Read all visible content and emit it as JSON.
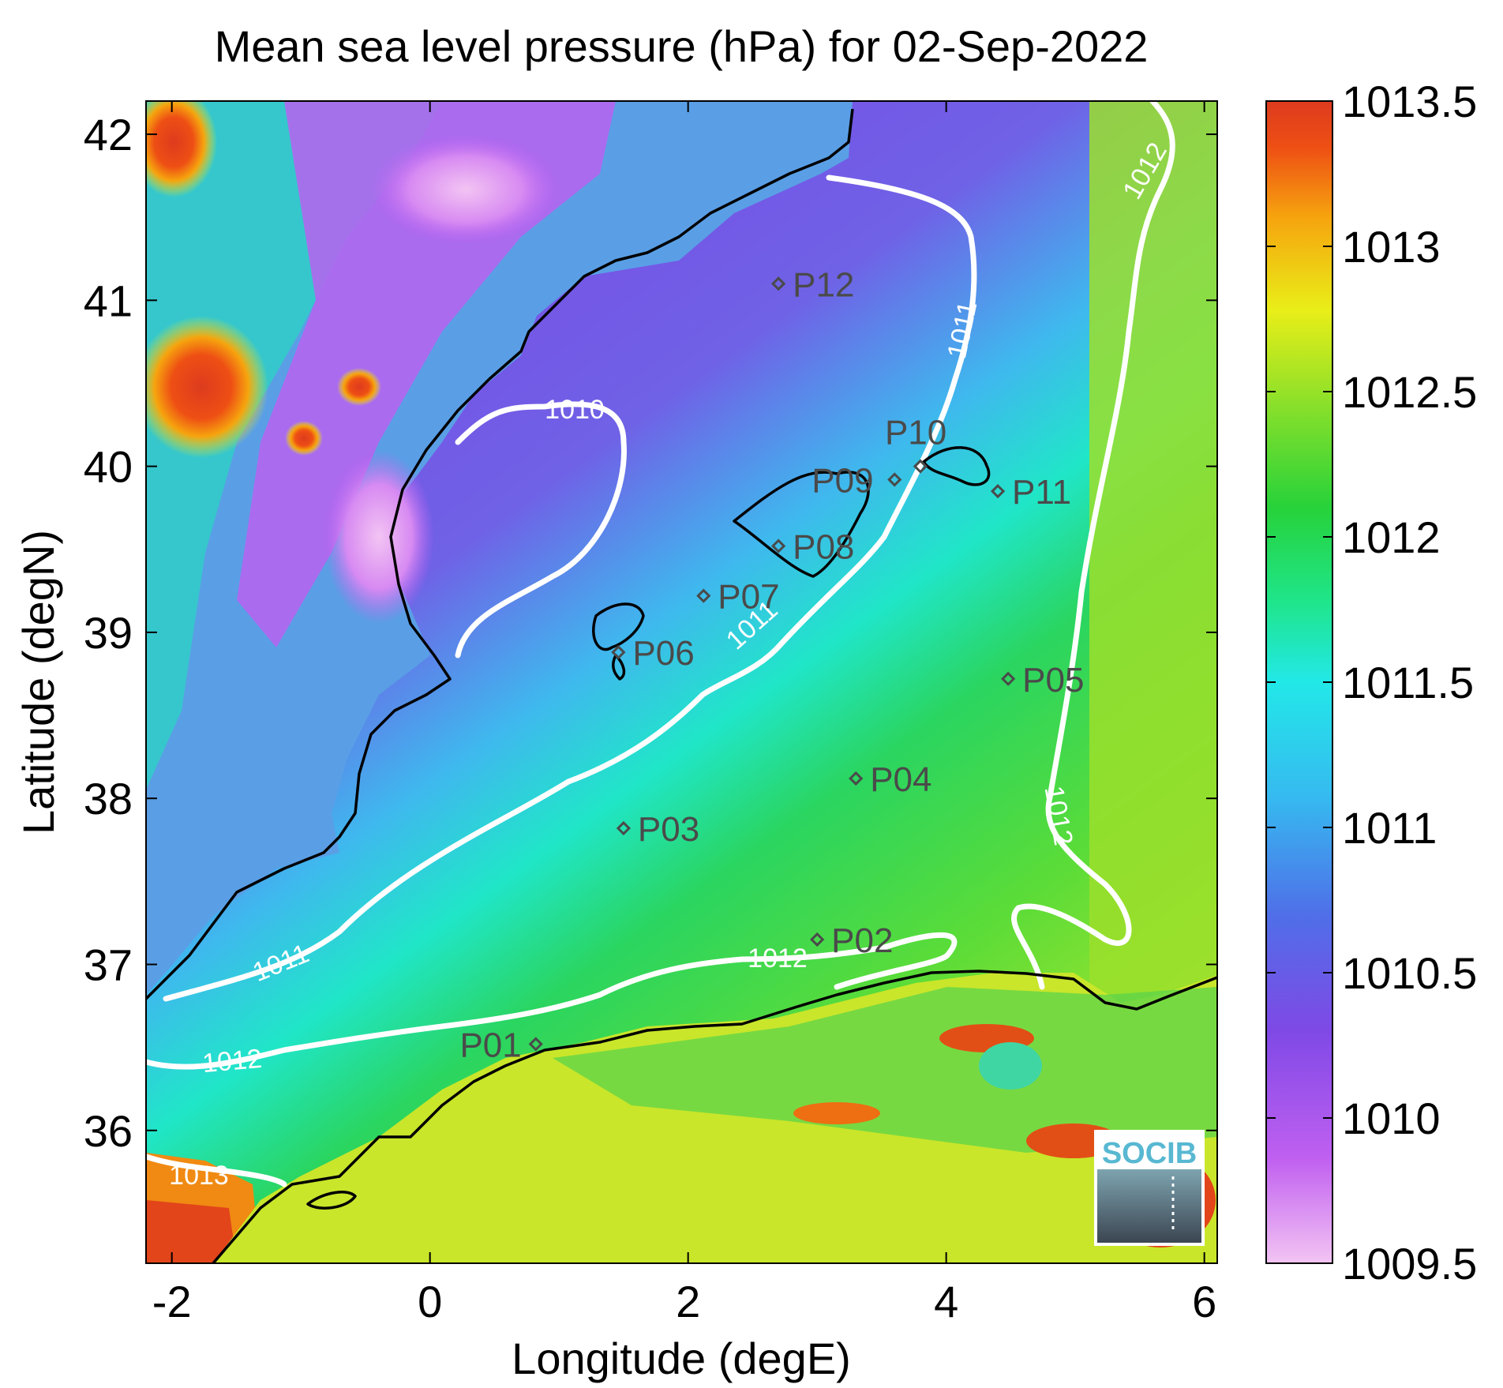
{
  "title": "Mean sea level pressure (hPa) for 02-Sep-2022",
  "xlabel": "Longitude (degE)",
  "ylabel": "Latitude (degN)",
  "xlim": [
    -2.2,
    6.1
  ],
  "ylim": [
    35.2,
    42.2
  ],
  "xticks": [
    {
      "value": -2,
      "label": "-2"
    },
    {
      "value": 0,
      "label": "0"
    },
    {
      "value": 2,
      "label": "2"
    },
    {
      "value": 4,
      "label": "4"
    },
    {
      "value": 6,
      "label": "6"
    }
  ],
  "yticks": [
    {
      "value": 36,
      "label": "36"
    },
    {
      "value": 37,
      "label": "37"
    },
    {
      "value": 38,
      "label": "38"
    },
    {
      "value": 39,
      "label": "39"
    },
    {
      "value": 40,
      "label": "40"
    },
    {
      "value": 41,
      "label": "41"
    },
    {
      "value": 42,
      "label": "42"
    }
  ],
  "colorbar": {
    "range": [
      1009.5,
      1013.5
    ],
    "ticks": [
      {
        "value": 1013.5,
        "label": "1013.5"
      },
      {
        "value": 1013,
        "label": "1013"
      },
      {
        "value": 1012.5,
        "label": "1012.5"
      },
      {
        "value": 1012,
        "label": "1012"
      },
      {
        "value": 1011.5,
        "label": "1011.5"
      },
      {
        "value": 1011,
        "label": "1011"
      },
      {
        "value": 1010.5,
        "label": "1010.5"
      },
      {
        "value": 1010,
        "label": "1010"
      },
      {
        "value": 1009.5,
        "label": "1009.5"
      }
    ],
    "colors": [
      "#f3c4f3",
      "#c060f0",
      "#7f49e6",
      "#4f6fe8",
      "#22e8e8",
      "#1fe58a",
      "#27d23a",
      "#8be02a",
      "#e9ee18",
      "#f6a40e",
      "#ee4f14",
      "#dd3b1e"
    ]
  },
  "contour_labels": [
    "1010",
    "1011",
    "1011",
    "1011",
    "1012",
    "1012",
    "1012",
    "1012",
    "1013"
  ],
  "stations": [
    {
      "id": "P01",
      "lon": 0.82,
      "lat": 36.52
    },
    {
      "id": "P02",
      "lon": 3.0,
      "lat": 37.15
    },
    {
      "id": "P03",
      "lon": 1.5,
      "lat": 37.82
    },
    {
      "id": "P04",
      "lon": 3.3,
      "lat": 38.12
    },
    {
      "id": "P05",
      "lon": 4.48,
      "lat": 38.72
    },
    {
      "id": "P06",
      "lon": 1.46,
      "lat": 38.88
    },
    {
      "id": "P07",
      "lon": 2.12,
      "lat": 39.22
    },
    {
      "id": "P08",
      "lon": 2.7,
      "lat": 39.52
    },
    {
      "id": "P09",
      "lon": 3.6,
      "lat": 39.92
    },
    {
      "id": "P10",
      "lon": 3.8,
      "lat": 40.0
    },
    {
      "id": "P11",
      "lon": 4.4,
      "lat": 39.85
    },
    {
      "id": "P12",
      "lon": 2.7,
      "lat": 41.1
    }
  ],
  "logo": {
    "text": "SOCIB"
  }
}
